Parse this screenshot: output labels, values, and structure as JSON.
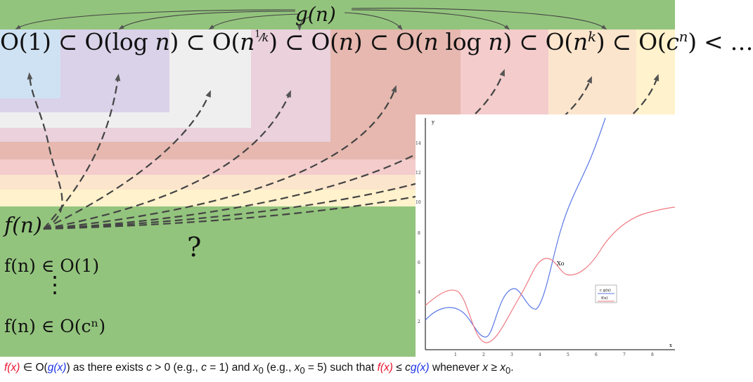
{
  "hierarchy": {
    "gn_label": "g(n)",
    "sets": [
      "O(1)",
      "O(log n)",
      "O(n^(1/k))",
      "O(n)",
      "O(n log n)",
      "O(n^k)",
      "O(c^n)"
    ],
    "expression": "O(1) ⊂ O(log n) ⊂ O(n^(1/k)) ⊂ O(n) ⊂ O(n log n) ⊂ O(n^k) ⊂ O(c^n) < …"
  },
  "left": {
    "fn_label": "f(n)",
    "first_membership": "f(n) ∈ O(1)",
    "vertical_dots": "⋮",
    "last_membership": "f(n) ∈ O(cⁿ)",
    "question": "?"
  },
  "plot": {
    "y_axis_label": "y",
    "x_axis_label": "x",
    "y_ticks": [
      "2",
      "4",
      "6",
      "8",
      "10",
      "12",
      "14"
    ],
    "x_ticks": [
      "1",
      "2",
      "3",
      "4",
      "5",
      "6",
      "7",
      "8"
    ],
    "x0_label": "Xo",
    "legend": [
      "c g(x)",
      "f(x)"
    ]
  },
  "caption": {
    "p1": "f(x)",
    "p2": " ∈ O(",
    "p3": "g(x)",
    "p4": ") as there exists ",
    "p5": "c",
    "p6": " > 0 (e.g., ",
    "p7": "c",
    "p8": " = 1) and ",
    "p9": "x",
    "p10": "0",
    "p11": " (e.g., ",
    "p12": "x",
    "p13": "0",
    "p14": " = 5) such that ",
    "p15": "f(x)",
    "p16": " ≤ ",
    "p17": "c",
    "p18": "g(x)",
    "p19": " whenever ",
    "p20": "x",
    "p21": " ≥ ",
    "p22": "x",
    "p23": "0",
    "p24": "."
  },
  "colors": {
    "green": "#93c47d",
    "o1": "#cfe2f3",
    "olog": "#d9d2e9",
    "onk1": "#efefef",
    "on": "#ead1dc",
    "onlog": "#e6b8af",
    "onk": "#f4cccc",
    "ocn": "#fce5cd",
    "odots": "#fff2cc",
    "curve_cg": "#5a78e6",
    "curve_f": "#ee7a82"
  }
}
